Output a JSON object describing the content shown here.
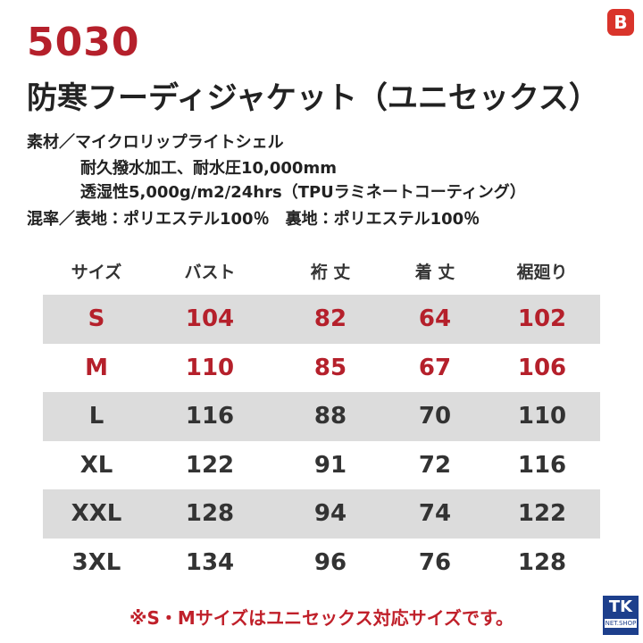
{
  "header": {
    "code": "5030",
    "title": "防寒フーディジャケット（ユニセックス）"
  },
  "specs": [
    "素材／マイクロリップライトシェル",
    "耐久撥水加工、耐水圧10,000mm",
    "透湿性5,000g/m2/24hrs（TPUラミネートコーティング）",
    "混率／表地：ポリエステル100％　裏地：ポリエステル100％"
  ],
  "table": {
    "columns": [
      "サイズ",
      "バスト",
      "裄 丈",
      "着 丈",
      "裾廻り"
    ],
    "rows": [
      [
        "S",
        104,
        82,
        64,
        102
      ],
      [
        "M",
        110,
        85,
        67,
        106
      ],
      [
        "L",
        116,
        88,
        70,
        110
      ],
      [
        "XL",
        122,
        91,
        72,
        116
      ],
      [
        "XXL",
        128,
        94,
        74,
        122
      ],
      [
        "3XL",
        134,
        96,
        76,
        128
      ]
    ]
  },
  "footnote": "※S・Mサイズはユニセックス対応サイズです。",
  "logo": {
    "main": "TK",
    "sub": "NET.SHOP"
  }
}
